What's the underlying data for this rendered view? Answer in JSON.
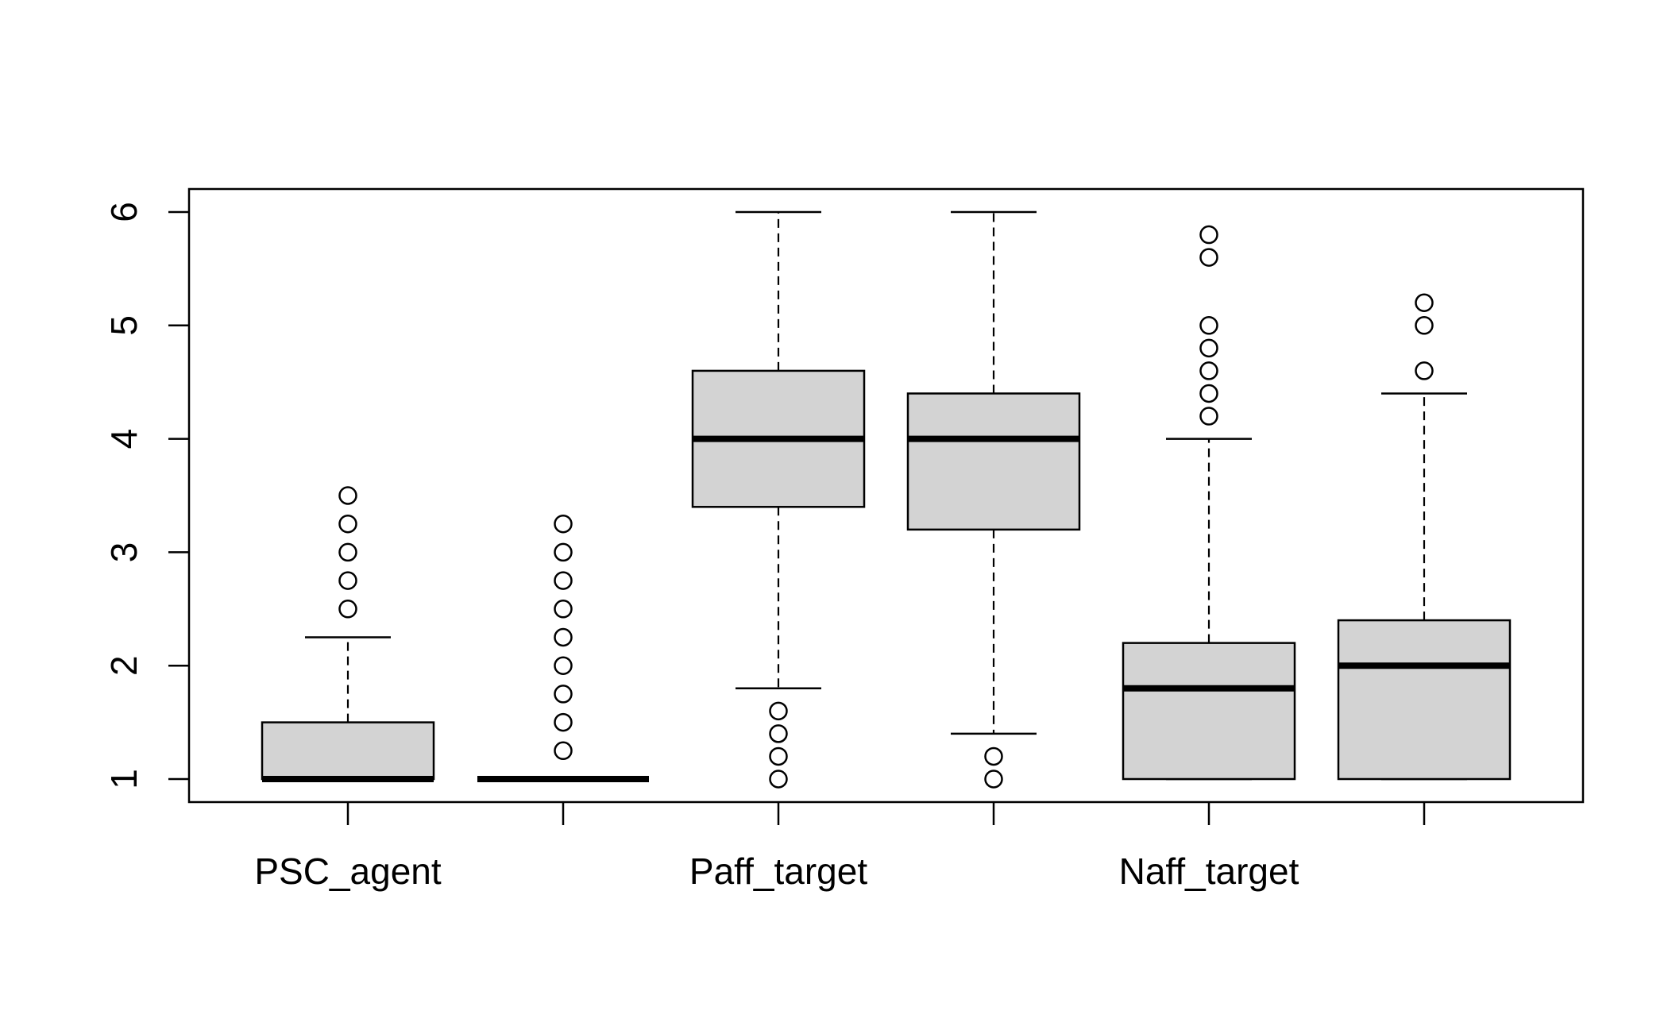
{
  "chart_data": {
    "type": "boxplot",
    "title": "",
    "xlabel": "",
    "ylabel": "",
    "ylim": [
      0.8,
      6.2
    ],
    "y_ticks": [
      1,
      2,
      3,
      4,
      5,
      6
    ],
    "y_tick_labels": [
      "1",
      "2",
      "3",
      "4",
      "5",
      "6"
    ],
    "x_tick_labels": [
      "PSC_agent",
      "",
      "Paff_target",
      "",
      "Naff_target",
      ""
    ],
    "grid": false,
    "legend": "none",
    "colors": {
      "box_fill": "#d3d3d3",
      "stroke": "#000000",
      "background": "#ffffff"
    },
    "boxes": [
      {
        "label": "PSC_agent",
        "whisker_low": 1.0,
        "q1": 1.0,
        "median": 1.0,
        "q3": 1.5,
        "whisker_high": 2.25,
        "outliers": [
          2.5,
          2.75,
          3.0,
          3.25,
          3.5
        ]
      },
      {
        "label": "",
        "whisker_low": 1.0,
        "q1": 1.0,
        "median": 1.0,
        "q3": 1.0,
        "whisker_high": 1.0,
        "outliers": [
          1.25,
          1.5,
          1.75,
          2.0,
          2.25,
          2.5,
          2.75,
          3.0,
          3.25
        ]
      },
      {
        "label": "Paff_target",
        "whisker_low": 1.8,
        "q1": 3.4,
        "median": 4.0,
        "q3": 4.6,
        "whisker_high": 6.0,
        "outliers": [
          1.0,
          1.2,
          1.4,
          1.6
        ]
      },
      {
        "label": "",
        "whisker_low": 1.4,
        "q1": 3.2,
        "median": 4.0,
        "q3": 4.4,
        "whisker_high": 6.0,
        "outliers": [
          1.0,
          1.2
        ]
      },
      {
        "label": "Naff_target",
        "whisker_low": 1.0,
        "q1": 1.0,
        "median": 1.8,
        "q3": 2.2,
        "whisker_high": 4.0,
        "outliers": [
          4.2,
          4.4,
          4.6,
          4.8,
          5.0,
          5.6,
          5.8
        ]
      },
      {
        "label": "",
        "whisker_low": 1.0,
        "q1": 1.0,
        "median": 2.0,
        "q3": 2.4,
        "whisker_high": 4.4,
        "outliers": [
          4.6,
          5.0,
          5.2
        ]
      }
    ]
  }
}
